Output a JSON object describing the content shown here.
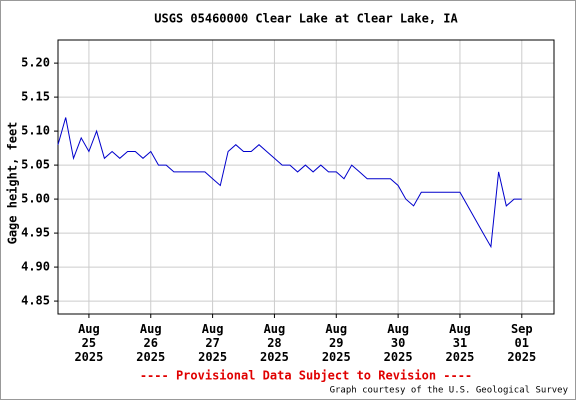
{
  "chart_data": {
    "type": "line",
    "title": "USGS 05460000 Clear Lake at Clear Lake, IA",
    "y_label": "Gage height, feet",
    "footer_note": "---- Provisional Data Subject to Revision ----",
    "credit": "Graph courtesy of the U.S. Geological Survey",
    "grid": true,
    "xlim": [
      "2025-08-24T12:00",
      "2025-09-01T12:30"
    ],
    "xticks": [
      {
        "value": "2025-08-25T00:00",
        "label": "Aug\n25\n2025"
      },
      {
        "value": "2025-08-26T00:00",
        "label": "Aug\n26\n2025"
      },
      {
        "value": "2025-08-27T00:00",
        "label": "Aug\n27\n2025"
      },
      {
        "value": "2025-08-28T00:00",
        "label": "Aug\n28\n2025"
      },
      {
        "value": "2025-08-29T00:00",
        "label": "Aug\n29\n2025"
      },
      {
        "value": "2025-08-30T00:00",
        "label": "Aug\n30\n2025"
      },
      {
        "value": "2025-08-31T00:00",
        "label": "Aug\n31\n2025"
      },
      {
        "value": "2025-09-01T00:00",
        "label": "Sep\n01\n2025"
      }
    ],
    "ylim": [
      4.831,
      5.234
    ],
    "yticks": [
      4.85,
      {
        "value": 4.9,
        "label": "4.90"
      },
      4.95,
      {
        "value": 5.0,
        "label": "5.00"
      },
      5.05,
      {
        "value": 5.1,
        "label": "5.10"
      },
      5.15,
      {
        "value": 5.2,
        "label": "5.20"
      }
    ],
    "x": [
      "2025-08-24T12:00",
      "2025-08-24T15:00",
      "2025-08-24T18:00",
      "2025-08-24T21:00",
      "2025-08-25T00:00",
      "2025-08-25T03:00",
      "2025-08-25T06:00",
      "2025-08-25T09:00",
      "2025-08-25T12:00",
      "2025-08-25T15:00",
      "2025-08-25T18:00",
      "2025-08-25T21:00",
      "2025-08-26T00:00",
      "2025-08-26T03:00",
      "2025-08-26T06:00",
      "2025-08-26T09:00",
      "2025-08-26T12:00",
      "2025-08-26T15:00",
      "2025-08-26T18:00",
      "2025-08-26T21:00",
      "2025-08-27T00:00",
      "2025-08-27T03:00",
      "2025-08-27T06:00",
      "2025-08-27T09:00",
      "2025-08-27T12:00",
      "2025-08-27T15:00",
      "2025-08-27T18:00",
      "2025-08-27T21:00",
      "2025-08-28T00:00",
      "2025-08-28T03:00",
      "2025-08-28T06:00",
      "2025-08-28T09:00",
      "2025-08-28T12:00",
      "2025-08-28T15:00",
      "2025-08-28T18:00",
      "2025-08-28T21:00",
      "2025-08-29T00:00",
      "2025-08-29T03:00",
      "2025-08-29T06:00",
      "2025-08-29T09:00",
      "2025-08-29T12:00",
      "2025-08-29T15:00",
      "2025-08-29T18:00",
      "2025-08-29T21:00",
      "2025-08-30T00:00",
      "2025-08-30T03:00",
      "2025-08-30T06:00",
      "2025-08-30T09:00",
      "2025-08-30T12:00",
      "2025-08-30T15:00",
      "2025-08-30T18:00",
      "2025-08-30T21:00",
      "2025-08-31T00:00",
      "2025-08-31T03:00",
      "2025-08-31T06:00",
      "2025-08-31T09:00",
      "2025-08-31T12:00",
      "2025-08-31T15:00",
      "2025-08-31T18:00",
      "2025-08-31T21:00",
      "2025-09-01T00:00"
    ],
    "series": [
      {
        "color": "#0000cc",
        "values": [
          5.08,
          5.12,
          5.06,
          5.09,
          5.07,
          5.1,
          5.06,
          5.07,
          5.06,
          5.07,
          5.07,
          5.06,
          5.07,
          5.05,
          5.05,
          5.04,
          5.04,
          5.04,
          5.04,
          5.04,
          5.03,
          5.02,
          5.07,
          5.08,
          5.07,
          5.07,
          5.08,
          5.07,
          5.06,
          5.05,
          5.05,
          5.04,
          5.05,
          5.04,
          5.05,
          5.04,
          5.04,
          5.03,
          5.05,
          5.04,
          5.03,
          5.03,
          5.03,
          5.03,
          5.02,
          5.0,
          4.99,
          5.01,
          5.01,
          5.01,
          5.01,
          5.01,
          5.01,
          4.99,
          4.97,
          4.95,
          4.93,
          5.04,
          4.99,
          5.0,
          5.0
        ]
      }
    ]
  }
}
